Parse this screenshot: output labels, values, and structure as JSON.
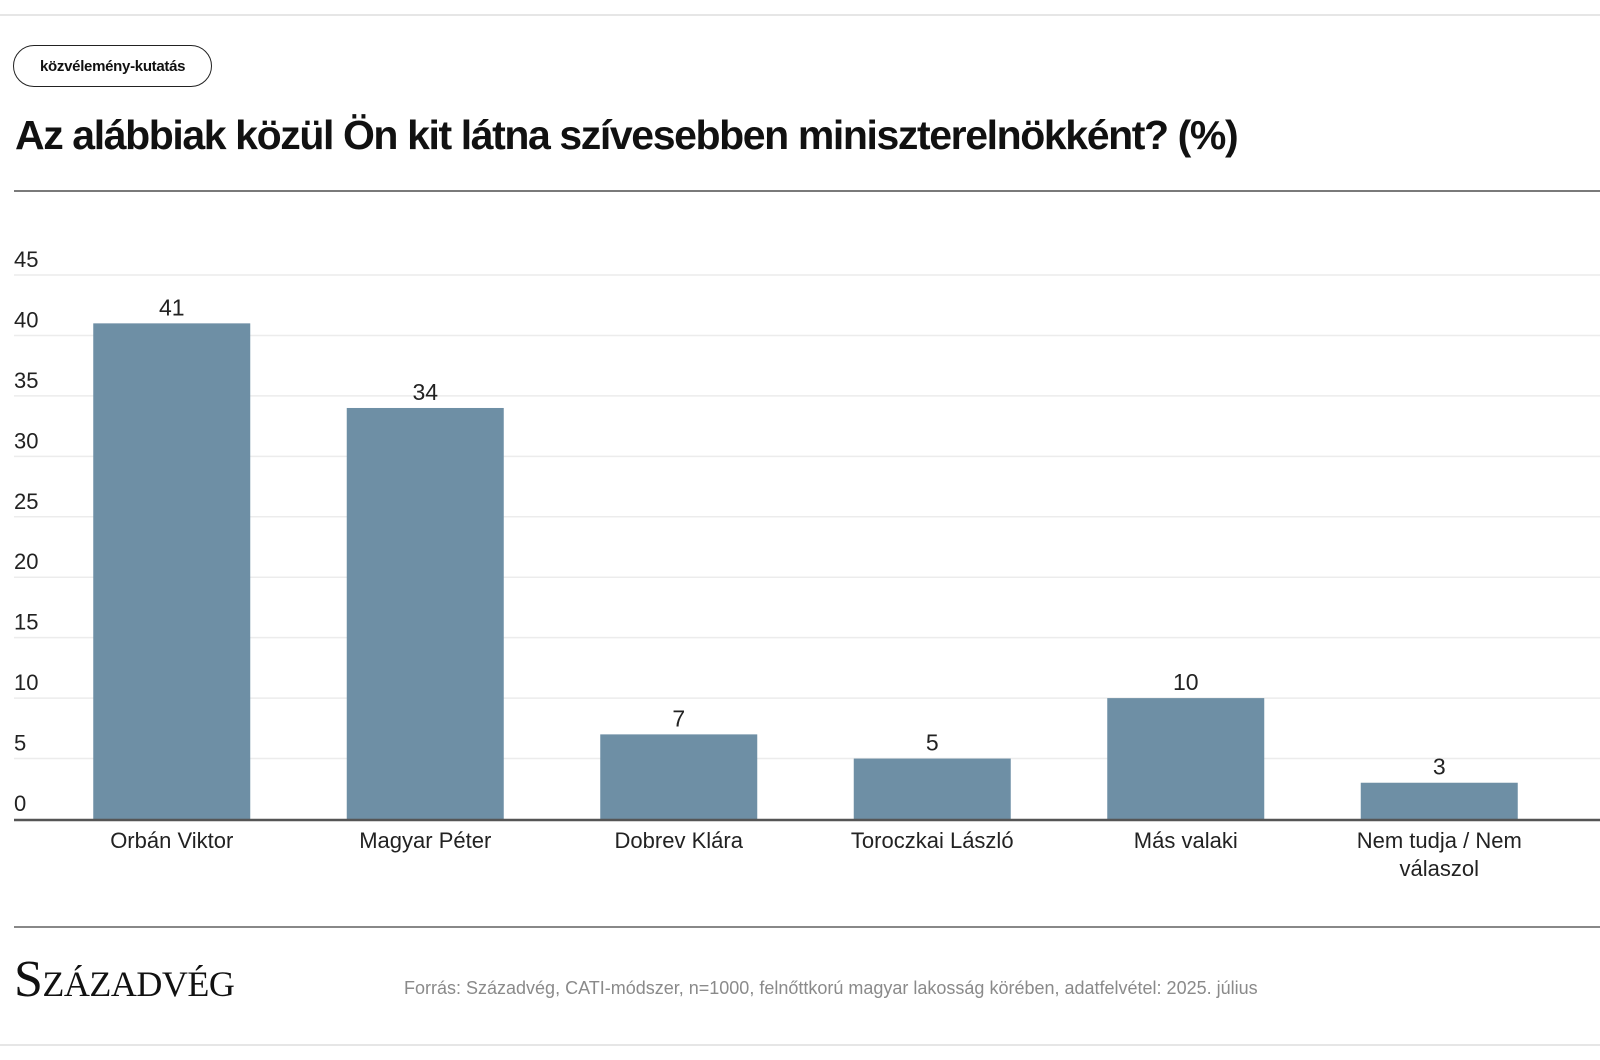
{
  "tag": "közvélemény-kutatás",
  "title": "Az alábbiak közül Ön kit látna szívesebben miniszterelnökként? (%)",
  "logo": "Századvég",
  "source": "Forrás: Századvég, CATI-módszer, n=1000, felnőttkorú magyar lakosság körében, adatfelvétel: 2025. július",
  "colors": {
    "bar": "#6e8fa5",
    "grid": "#ececec",
    "axis": "#555555"
  },
  "chart_data": {
    "type": "bar",
    "title": "Az alábbiak közül Ön kit látna szívesebben miniszterelnökként? (%)",
    "categories": [
      "Orbán Viktor",
      "Magyar Péter",
      "Dobrev Klára",
      "Toroczkai László",
      "Más valaki",
      "Nem tudja / Nem válaszol"
    ],
    "values": [
      41,
      34,
      7,
      5,
      10,
      3
    ],
    "xlabel": "",
    "ylabel": "",
    "ylim": [
      0,
      45
    ],
    "yticks": [
      0,
      5,
      10,
      15,
      20,
      25,
      30,
      35,
      40,
      45
    ],
    "grid": true,
    "data_labels": true
  }
}
